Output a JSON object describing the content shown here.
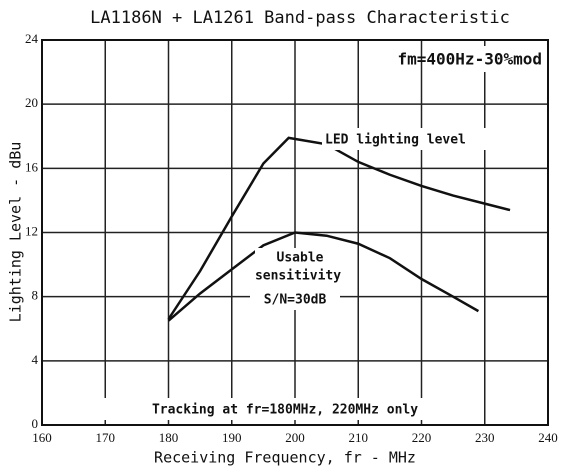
{
  "chart_data": {
    "type": "line",
    "title": "LA1186N + LA1261 Band-pass Characteristic",
    "x_label": "Receiving Frequency, fr - MHz",
    "y_label": "Lighting Level - dBu",
    "xlim": [
      160,
      240
    ],
    "xticks": [
      160,
      170,
      180,
      190,
      200,
      210,
      220,
      230,
      240
    ],
    "ylim": [
      0,
      24
    ],
    "yticks": [
      0,
      4,
      8,
      12,
      16,
      20,
      24
    ],
    "grid": true,
    "series": [
      {
        "name": "LED lighting level",
        "color": "#111111",
        "x": [
          180,
          185,
          190,
          195,
          199,
          205,
          210,
          215,
          220,
          225,
          230,
          234
        ],
        "values": [
          6.6,
          9.6,
          13,
          16.3,
          17.9,
          17.5,
          16.4,
          15.6,
          14.9,
          14.3,
          13.8,
          13.4
        ]
      },
      {
        "name": "Usable sensitivity",
        "color": "#111111",
        "x": [
          180,
          185,
          190,
          195,
          200,
          205,
          210,
          215,
          220,
          225,
          229
        ],
        "values": [
          6.5,
          8.2,
          9.7,
          11.2,
          12,
          11.8,
          11.3,
          10.4,
          9.1,
          8,
          7.1
        ]
      }
    ],
    "annotations": [
      "fm=400Hz-30%mod",
      "Usable",
      "sensitivity",
      "S/N=30dB",
      "Tracking at fr=180MHz, 220MHz only"
    ]
  }
}
